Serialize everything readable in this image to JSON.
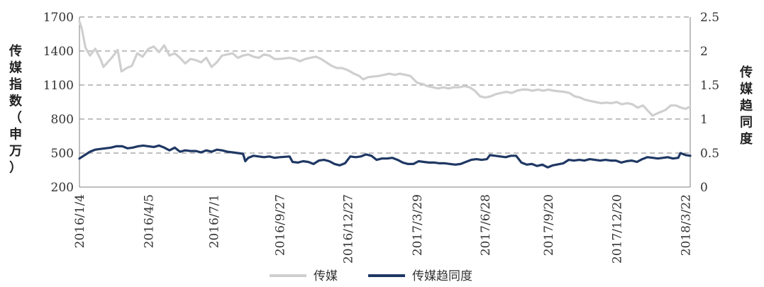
{
  "chart_data": {
    "type": "line",
    "xlabel": "",
    "ylabel_left": "传媒指数（申万）",
    "ylabel_right": "传媒趋同度",
    "ylim_left": [
      200,
      1700
    ],
    "yticks_left": [
      200,
      500,
      800,
      1100,
      1400,
      1700
    ],
    "ylim_right": [
      0,
      2.5
    ],
    "yticks_right": [
      "0",
      "0.5",
      "1",
      "1.5",
      "2",
      "2.5"
    ],
    "grid": "horizontal-dashed",
    "x_range": [
      "2016-01-04",
      "2018-03-28"
    ],
    "x_tick_labels": [
      {
        "date": "2016-01-04",
        "label": "2016/1/4"
      },
      {
        "date": "2016-04-05",
        "label": "2016/4/5"
      },
      {
        "date": "2016-07-01",
        "label": "2016/7/1"
      },
      {
        "date": "2016-09-27",
        "label": "2016/9/27"
      },
      {
        "date": "2016-12-27",
        "label": "2016/12/27"
      },
      {
        "date": "2017-03-29",
        "label": "2017/3/29"
      },
      {
        "date": "2017-06-28",
        "label": "2017/6/28"
      },
      {
        "date": "2017-09-20",
        "label": "2017/9/20"
      },
      {
        "date": "2017-12-20",
        "label": "2017/12/20"
      },
      {
        "date": "2018-03-22",
        "label": "2018/3/22"
      }
    ],
    "legend_position": "bottom",
    "series": [
      {
        "name": "传媒",
        "axis": "left",
        "color": "#cfcfcf",
        "points": [
          [
            "2016-01-04",
            1660
          ],
          [
            "2016-01-07",
            1600
          ],
          [
            "2016-01-12",
            1430
          ],
          [
            "2016-01-18",
            1360
          ],
          [
            "2016-01-25",
            1420
          ],
          [
            "2016-02-01",
            1330
          ],
          [
            "2016-02-05",
            1260
          ],
          [
            "2016-02-16",
            1340
          ],
          [
            "2016-02-24",
            1410
          ],
          [
            "2016-02-29",
            1220
          ],
          [
            "2016-03-07",
            1250
          ],
          [
            "2016-03-14",
            1270
          ],
          [
            "2016-03-21",
            1380
          ],
          [
            "2016-03-28",
            1350
          ],
          [
            "2016-04-05",
            1420
          ],
          [
            "2016-04-12",
            1440
          ],
          [
            "2016-04-19",
            1390
          ],
          [
            "2016-04-26",
            1450
          ],
          [
            "2016-05-03",
            1360
          ],
          [
            "2016-05-10",
            1380
          ],
          [
            "2016-05-17",
            1340
          ],
          [
            "2016-05-24",
            1290
          ],
          [
            "2016-05-31",
            1330
          ],
          [
            "2016-06-07",
            1320
          ],
          [
            "2016-06-14",
            1300
          ],
          [
            "2016-06-21",
            1340
          ],
          [
            "2016-06-28",
            1260
          ],
          [
            "2016-07-05",
            1300
          ],
          [
            "2016-07-12",
            1360
          ],
          [
            "2016-07-19",
            1370
          ],
          [
            "2016-07-26",
            1380
          ],
          [
            "2016-08-02",
            1340
          ],
          [
            "2016-08-09",
            1360
          ],
          [
            "2016-08-16",
            1370
          ],
          [
            "2016-08-23",
            1350
          ],
          [
            "2016-08-30",
            1340
          ],
          [
            "2016-09-06",
            1370
          ],
          [
            "2016-09-13",
            1360
          ],
          [
            "2016-09-20",
            1330
          ],
          [
            "2016-09-27",
            1330
          ],
          [
            "2016-10-10",
            1340
          ],
          [
            "2016-10-17",
            1330
          ],
          [
            "2016-10-24",
            1310
          ],
          [
            "2016-10-31",
            1330
          ],
          [
            "2016-11-07",
            1340
          ],
          [
            "2016-11-14",
            1350
          ],
          [
            "2016-11-21",
            1330
          ],
          [
            "2016-11-28",
            1300
          ],
          [
            "2016-12-05",
            1270
          ],
          [
            "2016-12-12",
            1250
          ],
          [
            "2016-12-19",
            1250
          ],
          [
            "2016-12-27",
            1230
          ],
          [
            "2017-01-04",
            1200
          ],
          [
            "2017-01-11",
            1180
          ],
          [
            "2017-01-16",
            1150
          ],
          [
            "2017-01-23",
            1170
          ],
          [
            "2017-02-06",
            1180
          ],
          [
            "2017-02-13",
            1190
          ],
          [
            "2017-02-20",
            1200
          ],
          [
            "2017-02-27",
            1190
          ],
          [
            "2017-03-06",
            1200
          ],
          [
            "2017-03-13",
            1190
          ],
          [
            "2017-03-20",
            1180
          ],
          [
            "2017-03-29",
            1120
          ],
          [
            "2017-04-05",
            1110
          ],
          [
            "2017-04-12",
            1090
          ],
          [
            "2017-04-19",
            1080
          ],
          [
            "2017-04-26",
            1070
          ],
          [
            "2017-05-03",
            1080
          ],
          [
            "2017-05-10",
            1070
          ],
          [
            "2017-05-17",
            1080
          ],
          [
            "2017-05-24",
            1080
          ],
          [
            "2017-05-31",
            1090
          ],
          [
            "2017-06-07",
            1080
          ],
          [
            "2017-06-14",
            1050
          ],
          [
            "2017-06-21",
            1000
          ],
          [
            "2017-06-28",
            990
          ],
          [
            "2017-07-05",
            1000
          ],
          [
            "2017-07-12",
            1020
          ],
          [
            "2017-07-19",
            1030
          ],
          [
            "2017-07-26",
            1040
          ],
          [
            "2017-08-02",
            1030
          ],
          [
            "2017-08-09",
            1050
          ],
          [
            "2017-08-16",
            1060
          ],
          [
            "2017-08-23",
            1060
          ],
          [
            "2017-08-30",
            1050
          ],
          [
            "2017-09-06",
            1060
          ],
          [
            "2017-09-13",
            1050
          ],
          [
            "2017-09-20",
            1060
          ],
          [
            "2017-09-27",
            1050
          ],
          [
            "2017-10-11",
            1040
          ],
          [
            "2017-10-18",
            1030
          ],
          [
            "2017-10-25",
            1000
          ],
          [
            "2017-11-01",
            990
          ],
          [
            "2017-11-08",
            970
          ],
          [
            "2017-11-15",
            960
          ],
          [
            "2017-11-22",
            950
          ],
          [
            "2017-11-29",
            940
          ],
          [
            "2017-12-06",
            945
          ],
          [
            "2017-12-13",
            940
          ],
          [
            "2017-12-20",
            950
          ],
          [
            "2017-12-27",
            930
          ],
          [
            "2018-01-03",
            940
          ],
          [
            "2018-01-10",
            930
          ],
          [
            "2018-01-17",
            900
          ],
          [
            "2018-01-24",
            920
          ],
          [
            "2018-01-31",
            870
          ],
          [
            "2018-02-06",
            830
          ],
          [
            "2018-02-12",
            850
          ],
          [
            "2018-02-23",
            880
          ],
          [
            "2018-03-02",
            920
          ],
          [
            "2018-03-09",
            920
          ],
          [
            "2018-03-16",
            900
          ],
          [
            "2018-03-22",
            890
          ],
          [
            "2018-03-28",
            910
          ]
        ]
      },
      {
        "name": "传媒趋同度",
        "axis": "right",
        "color": "#1f3864",
        "points": [
          [
            "2016-01-04",
            0.42
          ],
          [
            "2016-01-11",
            0.47
          ],
          [
            "2016-01-18",
            0.52
          ],
          [
            "2016-01-25",
            0.55
          ],
          [
            "2016-02-01",
            0.56
          ],
          [
            "2016-02-15",
            0.58
          ],
          [
            "2016-02-22",
            0.6
          ],
          [
            "2016-03-01",
            0.6
          ],
          [
            "2016-03-08",
            0.57
          ],
          [
            "2016-03-15",
            0.58
          ],
          [
            "2016-03-22",
            0.6
          ],
          [
            "2016-03-29",
            0.61
          ],
          [
            "2016-04-05",
            0.6
          ],
          [
            "2016-04-12",
            0.59
          ],
          [
            "2016-04-19",
            0.61
          ],
          [
            "2016-04-26",
            0.58
          ],
          [
            "2016-05-03",
            0.54
          ],
          [
            "2016-05-10",
            0.58
          ],
          [
            "2016-05-17",
            0.52
          ],
          [
            "2016-05-24",
            0.54
          ],
          [
            "2016-05-31",
            0.53
          ],
          [
            "2016-06-07",
            0.53
          ],
          [
            "2016-06-14",
            0.51
          ],
          [
            "2016-06-21",
            0.54
          ],
          [
            "2016-06-28",
            0.52
          ],
          [
            "2016-07-05",
            0.55
          ],
          [
            "2016-07-12",
            0.54
          ],
          [
            "2016-07-19",
            0.52
          ],
          [
            "2016-07-26",
            0.51
          ],
          [
            "2016-08-02",
            0.5
          ],
          [
            "2016-08-09",
            0.49
          ],
          [
            "2016-08-12",
            0.38
          ],
          [
            "2016-08-16",
            0.43
          ],
          [
            "2016-08-23",
            0.46
          ],
          [
            "2016-08-30",
            0.45
          ],
          [
            "2016-09-06",
            0.44
          ],
          [
            "2016-09-13",
            0.45
          ],
          [
            "2016-09-20",
            0.43
          ],
          [
            "2016-09-27",
            0.44
          ],
          [
            "2016-10-10",
            0.45
          ],
          [
            "2016-10-14",
            0.37
          ],
          [
            "2016-10-21",
            0.36
          ],
          [
            "2016-10-28",
            0.38
          ],
          [
            "2016-11-04",
            0.37
          ],
          [
            "2016-11-11",
            0.34
          ],
          [
            "2016-11-18",
            0.39
          ],
          [
            "2016-11-25",
            0.4
          ],
          [
            "2016-12-02",
            0.38
          ],
          [
            "2016-12-09",
            0.34
          ],
          [
            "2016-12-16",
            0.32
          ],
          [
            "2016-12-23",
            0.35
          ],
          [
            "2016-12-30",
            0.45
          ],
          [
            "2017-01-06",
            0.44
          ],
          [
            "2017-01-13",
            0.45
          ],
          [
            "2017-01-20",
            0.48
          ],
          [
            "2017-01-27",
            0.46
          ],
          [
            "2017-02-03",
            0.4
          ],
          [
            "2017-02-10",
            0.42
          ],
          [
            "2017-02-17",
            0.42
          ],
          [
            "2017-02-24",
            0.43
          ],
          [
            "2017-03-03",
            0.4
          ],
          [
            "2017-03-10",
            0.36
          ],
          [
            "2017-03-17",
            0.34
          ],
          [
            "2017-03-24",
            0.34
          ],
          [
            "2017-03-31",
            0.38
          ],
          [
            "2017-04-07",
            0.37
          ],
          [
            "2017-04-14",
            0.36
          ],
          [
            "2017-04-21",
            0.36
          ],
          [
            "2017-04-28",
            0.35
          ],
          [
            "2017-05-05",
            0.35
          ],
          [
            "2017-05-12",
            0.34
          ],
          [
            "2017-05-19",
            0.33
          ],
          [
            "2017-05-26",
            0.34
          ],
          [
            "2017-06-02",
            0.37
          ],
          [
            "2017-06-09",
            0.4
          ],
          [
            "2017-06-16",
            0.41
          ],
          [
            "2017-06-23",
            0.4
          ],
          [
            "2017-06-30",
            0.41
          ],
          [
            "2017-07-04",
            0.47
          ],
          [
            "2017-07-11",
            0.46
          ],
          [
            "2017-07-18",
            0.45
          ],
          [
            "2017-07-25",
            0.44
          ],
          [
            "2017-08-01",
            0.46
          ],
          [
            "2017-08-08",
            0.46
          ],
          [
            "2017-08-15",
            0.36
          ],
          [
            "2017-08-22",
            0.33
          ],
          [
            "2017-08-29",
            0.34
          ],
          [
            "2017-09-05",
            0.31
          ],
          [
            "2017-09-12",
            0.33
          ],
          [
            "2017-09-19",
            0.29
          ],
          [
            "2017-09-26",
            0.32
          ],
          [
            "2017-10-10",
            0.35
          ],
          [
            "2017-10-17",
            0.4
          ],
          [
            "2017-10-24",
            0.39
          ],
          [
            "2017-10-31",
            0.4
          ],
          [
            "2017-11-07",
            0.39
          ],
          [
            "2017-11-14",
            0.41
          ],
          [
            "2017-11-21",
            0.4
          ],
          [
            "2017-11-28",
            0.39
          ],
          [
            "2017-12-05",
            0.4
          ],
          [
            "2017-12-12",
            0.39
          ],
          [
            "2017-12-19",
            0.39
          ],
          [
            "2017-12-26",
            0.36
          ],
          [
            "2018-01-02",
            0.38
          ],
          [
            "2018-01-09",
            0.39
          ],
          [
            "2018-01-16",
            0.37
          ],
          [
            "2018-01-23",
            0.41
          ],
          [
            "2018-01-30",
            0.44
          ],
          [
            "2018-02-06",
            0.43
          ],
          [
            "2018-02-13",
            0.42
          ],
          [
            "2018-02-26",
            0.44
          ],
          [
            "2018-03-05",
            0.42
          ],
          [
            "2018-03-12",
            0.43
          ],
          [
            "2018-03-15",
            0.5
          ],
          [
            "2018-03-22",
            0.47
          ],
          [
            "2018-03-28",
            0.46
          ]
        ]
      }
    ]
  }
}
